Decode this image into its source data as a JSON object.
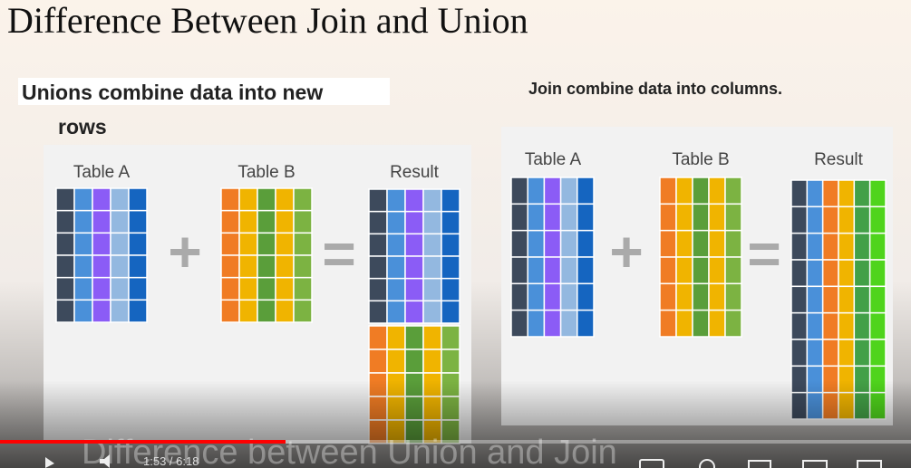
{
  "slide": {
    "title": "Difference Between Join and Union",
    "union": {
      "heading_line1": "Unions combine data into new",
      "heading_line2": "rows",
      "table_a": "Table A",
      "table_b": "Table B",
      "result": "Result"
    },
    "join": {
      "heading": "Join combine data into columns.",
      "table_a": "Table A",
      "table_b": "Table B",
      "result": "Result"
    }
  },
  "player": {
    "caption": "Difference between Union and Join",
    "time": "1:53 / 6:18"
  }
}
